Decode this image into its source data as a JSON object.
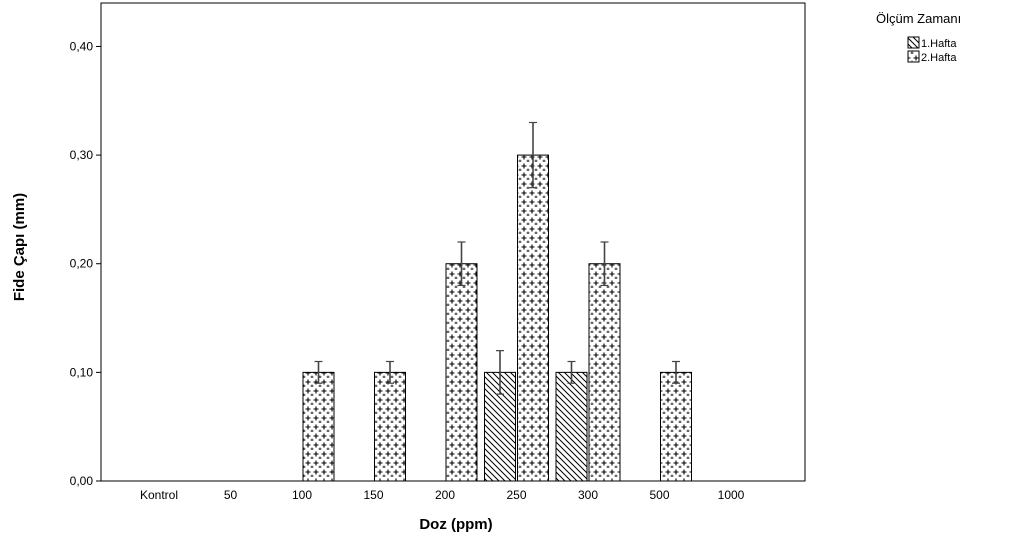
{
  "chart_data": {
    "type": "bar",
    "xlabel": "Doz (ppm)",
    "ylabel": "Fide Çapı (mm)",
    "ylim": [
      0,
      0.44
    ],
    "yticks": [
      0.0,
      0.1,
      0.2,
      0.3,
      0.4
    ],
    "ytick_labels": [
      "0,00",
      "0,10",
      "0,20",
      "0,30",
      "0,40"
    ],
    "categories": [
      "Kontrol",
      "50",
      "100",
      "150",
      "200",
      "250",
      "300",
      "500",
      "1000"
    ],
    "legend": {
      "title": "Ölçüm Zamanı",
      "position": "top-right, outside plot"
    },
    "grid": false,
    "error_bars": true,
    "series": [
      {
        "name": "1.Hafta",
        "pattern": "diagonal-hatch",
        "values": [
          0,
          0,
          0,
          0,
          0,
          0.1,
          0.1,
          0,
          0
        ],
        "errors": [
          0,
          0,
          0,
          0,
          0,
          0.02,
          0.01,
          0,
          0
        ]
      },
      {
        "name": "2.Hafta",
        "pattern": "plus-pattern",
        "values": [
          0,
          0,
          0.1,
          0.1,
          0.2,
          0.3,
          0.2,
          0.1,
          0
        ],
        "errors": [
          0,
          0,
          0.01,
          0.01,
          0.02,
          0.03,
          0.02,
          0.01,
          0
        ]
      }
    ]
  }
}
